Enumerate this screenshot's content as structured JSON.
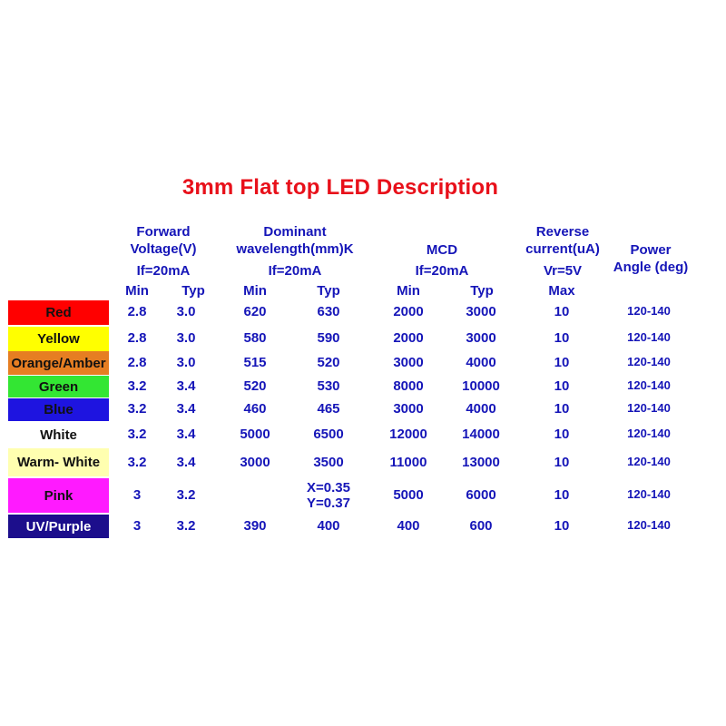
{
  "title": "3mm Flat top LED Description",
  "headers": {
    "forward_voltage": [
      "Forward",
      "Voltage(V)"
    ],
    "dominant_wavelength": [
      "Dominant",
      "wavelength(mm)K"
    ],
    "mcd": "MCD",
    "reverse_current": [
      "Reverse",
      "current(uA)"
    ],
    "power_angle": [
      "Power",
      "Angle (deg)"
    ],
    "if_fv": "If=20mA",
    "if_wl": "If=20mA",
    "if_mcd": "If=20mA",
    "vr": "Vr=5V",
    "sub": {
      "fv_min": "Min",
      "fv_typ": "Typ",
      "wl_min": "Min",
      "wl_typ": "Typ",
      "mcd_min": "Min",
      "mcd_typ": "Typ",
      "rc_max": "Max"
    }
  },
  "rows": [
    {
      "color": "Red",
      "bg": "#ff0000",
      "fg": "#111111",
      "fv_min": "2.8",
      "fv_typ": "3.0",
      "wl_min": "620",
      "wl_typ": "630",
      "mcd_min": "2000",
      "mcd_typ": "3000",
      "rc_max": "10",
      "angle": "120-140"
    },
    {
      "color": "Yellow",
      "bg": "#ffff00",
      "fg": "#111111",
      "fv_min": "2.8",
      "fv_typ": "3.0",
      "wl_min": "580",
      "wl_typ": "590",
      "mcd_min": "2000",
      "mcd_typ": "3000",
      "rc_max": "10",
      "angle": "120-140"
    },
    {
      "color": "Orange/Amber",
      "bg": "#e67e22",
      "fg": "#111111",
      "fv_min": "2.8",
      "fv_typ": "3.0",
      "wl_min": "515",
      "wl_typ": "520",
      "mcd_min": "3000",
      "mcd_typ": "4000",
      "rc_max": "10",
      "angle": "120-140"
    },
    {
      "color": "Green",
      "bg": "#33e633",
      "fg": "#111111",
      "fv_min": "3.2",
      "fv_typ": "3.4",
      "wl_min": "520",
      "wl_typ": "530",
      "mcd_min": "8000",
      "mcd_typ": "10000",
      "rc_max": "10",
      "angle": "120-140"
    },
    {
      "color": "Blue",
      "bg": "#1e14e0",
      "fg": "#111111",
      "fv_min": "3.2",
      "fv_typ": "3.4",
      "wl_min": "460",
      "wl_typ": "465",
      "mcd_min": "3000",
      "mcd_typ": "4000",
      "rc_max": "10",
      "angle": "120-140"
    },
    {
      "color": "White",
      "bg": "#ffffff",
      "fg": "#111111",
      "fv_min": "3.2",
      "fv_typ": "3.4",
      "wl_min": "5000",
      "wl_typ": "6500",
      "mcd_min": "12000",
      "mcd_typ": "14000",
      "rc_max": "10",
      "angle": "120-140"
    },
    {
      "color": "Warm- White",
      "bg": "#ffffb0",
      "fg": "#111111",
      "fv_min": "3.2",
      "fv_typ": "3.4",
      "wl_min": "3000",
      "wl_typ": "3500",
      "mcd_min": "11000",
      "mcd_typ": "13000",
      "rc_max": "10",
      "angle": "120-140"
    },
    {
      "color": "Pink",
      "bg": "#ff1aff",
      "fg": "#111111",
      "fv_min": "3",
      "fv_typ": "3.2",
      "wl_min": "",
      "wl_typ": "X=0.35",
      "wl_typ2": "Y=0.37",
      "mcd_min": "5000",
      "mcd_typ": "6000",
      "rc_max": "10",
      "angle": "120-140"
    },
    {
      "color": "UV/Purple",
      "bg": "#1c0e8c",
      "fg": "#ffffff",
      "fv_min": "3",
      "fv_typ": "3.2",
      "wl_min": "390",
      "wl_typ": "400",
      "mcd_min": "400",
      "mcd_typ": "600",
      "rc_max": "10",
      "angle": "120-140"
    }
  ]
}
